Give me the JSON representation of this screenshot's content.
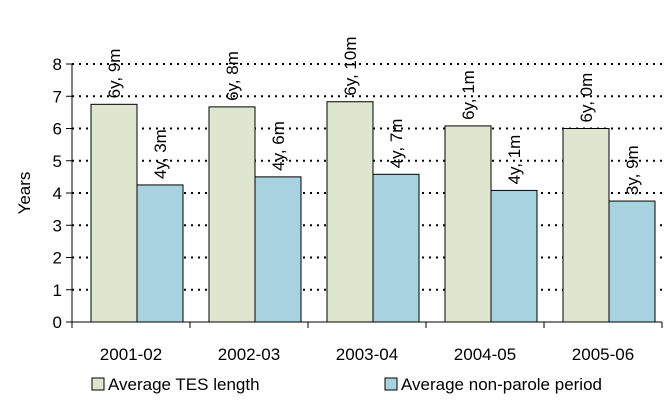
{
  "chart_data": {
    "type": "bar",
    "title": "",
    "xlabel": "",
    "ylabel": "Years",
    "ylim": [
      0,
      8
    ],
    "yticks": [
      0,
      1,
      2,
      3,
      4,
      5,
      6,
      7,
      8
    ],
    "grid": "horizontal dotted",
    "legend_position": "bottom",
    "categories": [
      "2001-02",
      "2002-03",
      "2003-04",
      "2004-05",
      "2005-06"
    ],
    "series": [
      {
        "name": "Average TES length",
        "color": "#dfe6cf",
        "values": [
          6.75,
          6.67,
          6.83,
          6.08,
          6.0
        ],
        "labels": [
          "6y, 9m",
          "6y, 8m",
          "6y, 10m",
          "6y, 1m",
          "6y, 0m"
        ]
      },
      {
        "name": "Average non-parole period",
        "color": "#a7d3e1",
        "values": [
          4.25,
          4.5,
          4.58,
          4.08,
          3.75
        ],
        "labels": [
          "4y, 3m",
          "4y, 6m",
          "4y, 7m",
          "4y, 1m",
          "3y, 9m"
        ]
      }
    ]
  }
}
